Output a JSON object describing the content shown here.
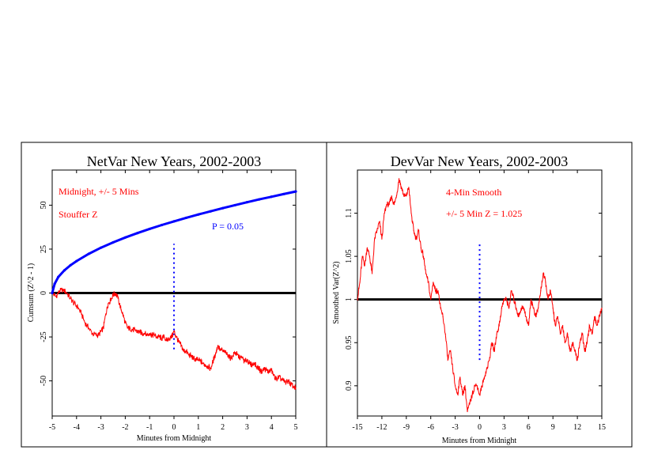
{
  "colors": {
    "background": "#ffffff",
    "frame": "#000000",
    "data_red": "#ff0000",
    "envelope_blue": "#0000ff",
    "marker_blue": "#0000ff",
    "baseline": "#000000"
  },
  "chart_data": [
    {
      "type": "line",
      "title": "NetVar New Years, 2002-2003",
      "xlabel": "Minutes from Midnight",
      "ylabel": "Cumsum (Z^2 - 1)",
      "xlim": [
        -5,
        5
      ],
      "ylim": [
        -70,
        70
      ],
      "x_ticks": [
        -5,
        -4,
        -3,
        -2,
        -1,
        0,
        1,
        2,
        3,
        4,
        5
      ],
      "y_ticks": [
        -50,
        -25,
        0,
        25,
        50
      ],
      "baseline": 0,
      "midnight_marker": {
        "x": 0,
        "y_range": [
          -32,
          28
        ]
      },
      "annotations": [
        "Midnight, +/- 5 Mins",
        "Stouffer Z",
        "P = 0.05"
      ],
      "series": [
        {
          "role": "data",
          "x": [
            -5,
            -4.85,
            -4.7,
            -4.55,
            -4.4,
            -4.25,
            -4.1,
            -3.95,
            -3.8,
            -3.65,
            -3.5,
            -3.35,
            -3.2,
            -3.1,
            -3.0,
            -2.9,
            -2.8,
            -2.7,
            -2.6,
            -2.5,
            -2.4,
            -2.3,
            -2.2,
            -2.1,
            -2.0,
            -1.9,
            -1.8,
            -1.7,
            -1.6,
            -1.5,
            -1.4,
            -1.3,
            -1.2,
            -1.1,
            -1.0,
            -0.9,
            -0.8,
            -0.7,
            -0.6,
            -0.5,
            -0.4,
            -0.3,
            -0.2,
            -0.1,
            0.0,
            0.1,
            0.2,
            0.3,
            0.4,
            0.5,
            0.6,
            0.7,
            0.8,
            0.9,
            1.0,
            1.1,
            1.2,
            1.3,
            1.4,
            1.5,
            1.6,
            1.7,
            1.8,
            1.9,
            2.0,
            2.1,
            2.2,
            2.3,
            2.4,
            2.5,
            2.6,
            2.7,
            2.8,
            2.9,
            3.0,
            3.1,
            3.2,
            3.3,
            3.4,
            3.5,
            3.6,
            3.7,
            3.8,
            3.9,
            4.0,
            4.1,
            4.2,
            4.3,
            4.4,
            4.5,
            4.6,
            4.7,
            4.8,
            4.9,
            5.0
          ],
          "y": [
            0,
            -2,
            1,
            2,
            0,
            -3,
            -6,
            -8,
            -12,
            -17,
            -20,
            -23,
            -24,
            -24,
            -22,
            -20,
            -12,
            -6,
            -4,
            -1,
            0,
            -3,
            -8,
            -12,
            -17,
            -20,
            -20,
            -21,
            -21,
            -22,
            -22,
            -23,
            -23,
            -24,
            -23,
            -24,
            -24,
            -25,
            -25,
            -26,
            -25,
            -27,
            -26,
            -25,
            -22,
            -25,
            -28,
            -30,
            -33,
            -33,
            -35,
            -36,
            -37,
            -38,
            -38,
            -39,
            -40,
            -41,
            -42,
            -43,
            -39,
            -35,
            -30,
            -32,
            -33,
            -34,
            -35,
            -37,
            -36,
            -34,
            -35,
            -37,
            -37,
            -39,
            -38,
            -40,
            -41,
            -40,
            -42,
            -43,
            -45,
            -43,
            -44,
            -45,
            -44,
            -47,
            -49,
            -48,
            -49,
            -50,
            -51,
            -50,
            -52,
            -53,
            -54
          ]
        },
        {
          "role": "envelope",
          "x": [
            -5,
            -4.9,
            -4.75,
            -4.5,
            -4.25,
            -4,
            -3.5,
            -3,
            -2.5,
            -2,
            -1.5,
            -1,
            -0.5,
            0,
            0.5,
            1,
            1.5,
            2,
            2.5,
            3,
            3.5,
            4,
            4.5,
            5
          ],
          "y": [
            0,
            5.2,
            9.1,
            12.9,
            15.8,
            18.2,
            22.3,
            25.8,
            28.8,
            31.6,
            34.1,
            36.5,
            38.7,
            40.8,
            42.8,
            44.7,
            46.5,
            48.3,
            50.0,
            51.7,
            53.3,
            54.8,
            56.3,
            57.8
          ]
        }
      ]
    },
    {
      "type": "line",
      "title": "DevVar New Years, 2002-2003",
      "xlabel": "Minutes from Midnight",
      "ylabel": "Smoothed Var(Z^2)",
      "xlim": [
        -15,
        15
      ],
      "ylim": [
        0.865,
        1.15
      ],
      "x_ticks": [
        -15,
        -12,
        -9,
        -6,
        -3,
        0,
        3,
        6,
        9,
        12,
        15
      ],
      "y_ticks": [
        0.9,
        0.95,
        1,
        1.05,
        1.1
      ],
      "baseline": 1,
      "midnight_marker": {
        "x": 0,
        "y_range": [
          0.93,
          1.065
        ]
      },
      "annotations": [
        "4-Min Smooth",
        "+/- 5 Min Z = 1.025"
      ],
      "series": [
        {
          "role": "data",
          "x": [
            -15,
            -14.7,
            -14.4,
            -14.1,
            -13.8,
            -13.5,
            -13.2,
            -12.9,
            -12.6,
            -12.3,
            -12.0,
            -11.7,
            -11.4,
            -11.1,
            -10.8,
            -10.5,
            -10.2,
            -9.9,
            -9.6,
            -9.3,
            -9.0,
            -8.7,
            -8.4,
            -8.1,
            -7.8,
            -7.5,
            -7.2,
            -6.9,
            -6.6,
            -6.3,
            -6.0,
            -5.7,
            -5.4,
            -5.1,
            -4.8,
            -4.5,
            -4.2,
            -3.9,
            -3.6,
            -3.3,
            -3.0,
            -2.7,
            -2.4,
            -2.1,
            -1.8,
            -1.5,
            -1.2,
            -0.9,
            -0.6,
            -0.3,
            0.0,
            0.3,
            0.6,
            0.9,
            1.2,
            1.5,
            1.8,
            2.1,
            2.4,
            2.7,
            3.0,
            3.3,
            3.6,
            3.9,
            4.2,
            4.5,
            4.8,
            5.1,
            5.4,
            5.7,
            6.0,
            6.3,
            6.6,
            6.9,
            7.2,
            7.5,
            7.8,
            8.1,
            8.4,
            8.7,
            9.0,
            9.3,
            9.6,
            9.9,
            10.2,
            10.5,
            10.8,
            11.1,
            11.4,
            11.7,
            12.0,
            12.3,
            12.6,
            12.9,
            13.2,
            13.5,
            13.8,
            14.1,
            14.4,
            14.7,
            15.0
          ],
          "y": [
            1.0,
            1.02,
            1.05,
            1.04,
            1.06,
            1.05,
            1.03,
            1.07,
            1.08,
            1.09,
            1.07,
            1.1,
            1.11,
            1.11,
            1.12,
            1.11,
            1.12,
            1.14,
            1.13,
            1.12,
            1.12,
            1.13,
            1.1,
            1.08,
            1.07,
            1.08,
            1.06,
            1.05,
            1.03,
            1.02,
            1.0,
            1.02,
            1.01,
            1.01,
            0.99,
            0.98,
            0.96,
            0.93,
            0.94,
            0.92,
            0.9,
            0.89,
            0.91,
            0.89,
            0.9,
            0.87,
            0.88,
            0.89,
            0.9,
            0.9,
            0.89,
            0.9,
            0.91,
            0.92,
            0.93,
            0.95,
            0.94,
            0.96,
            0.97,
            0.99,
            1.0,
            1.0,
            0.99,
            1.01,
            1.0,
            0.99,
            0.98,
            0.99,
            0.99,
            0.98,
            0.97,
            1.0,
            0.99,
            0.98,
            0.99,
            1.01,
            1.03,
            1.02,
            1.0,
            1.01,
            0.99,
            0.97,
            0.98,
            0.96,
            0.97,
            0.95,
            0.96,
            0.94,
            0.95,
            0.94,
            0.93,
            0.95,
            0.96,
            0.94,
            0.95,
            0.97,
            0.96,
            0.98,
            0.97,
            0.98,
            0.99
          ]
        }
      ]
    }
  ]
}
